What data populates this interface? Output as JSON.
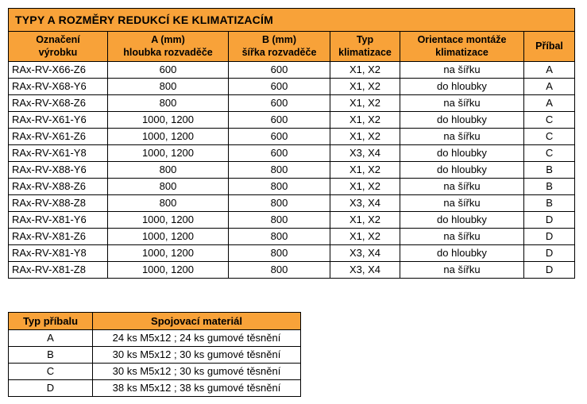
{
  "colors": {
    "header_orange": "#f8a239",
    "border": "#000000",
    "background": "#ffffff"
  },
  "main_table": {
    "title": "TYPY A ROZMĚRY REDUKCÍ KE KLIMATIZACÍM",
    "headers": [
      "Označení\nvýrobku",
      "A (mm)\nhloubka rozvaděče",
      "B (mm)\nšířka rozvaděče",
      "Typ\nklimatizace",
      "Orientace montáže\nklimatizace",
      "Příbal"
    ],
    "rows": [
      [
        "RAx-RV-X66-Z6",
        "600",
        "600",
        "X1, X2",
        "na šířku",
        "A"
      ],
      [
        "RAx-RV-X68-Y6",
        "800",
        "600",
        "X1, X2",
        "do hloubky",
        "A"
      ],
      [
        "RAx-RV-X68-Z6",
        "800",
        "600",
        "X1, X2",
        "na šířku",
        "A"
      ],
      [
        "RAx-RV-X61-Y6",
        "1000, 1200",
        "600",
        "X1, X2",
        "do hloubky",
        "C"
      ],
      [
        "RAx-RV-X61-Z6",
        "1000, 1200",
        "600",
        "X1, X2",
        "na šířku",
        "C"
      ],
      [
        "RAx-RV-X61-Y8",
        "1000, 1200",
        "600",
        "X3, X4",
        "do hloubky",
        "C"
      ],
      [
        "RAx-RV-X88-Y6",
        "800",
        "800",
        "X1, X2",
        "do hloubky",
        "B"
      ],
      [
        "RAx-RV-X88-Z6",
        "800",
        "800",
        "X1, X2",
        "na šířku",
        "B"
      ],
      [
        "RAx-RV-X88-Z8",
        "800",
        "800",
        "X3, X4",
        "na šířku",
        "B"
      ],
      [
        "RAx-RV-X81-Y6",
        "1000, 1200",
        "800",
        "X1, X2",
        "do hloubky",
        "D"
      ],
      [
        "RAx-RV-X81-Z6",
        "1000, 1200",
        "800",
        "X1, X2",
        "na šířku",
        "D"
      ],
      [
        "RAx-RV-X81-Y8",
        "1000, 1200",
        "800",
        "X3, X4",
        "do hloubky",
        "D"
      ],
      [
        "RAx-RV-X81-Z8",
        "1000, 1200",
        "800",
        "X3, X4",
        "na šířku",
        "D"
      ]
    ]
  },
  "accessory_table": {
    "headers": [
      "Typ příbalu",
      "Spojovací materiál"
    ],
    "rows": [
      [
        "A",
        "24 ks M5x12 ; 24 ks gumové těsnění"
      ],
      [
        "B",
        "30 ks M5x12 ; 30 ks gumové těsnění"
      ],
      [
        "C",
        "30 ks M5x12 ; 30 ks gumové těsnění"
      ],
      [
        "D",
        "38 ks M5x12 ; 38 ks gumové těsnění"
      ]
    ]
  }
}
